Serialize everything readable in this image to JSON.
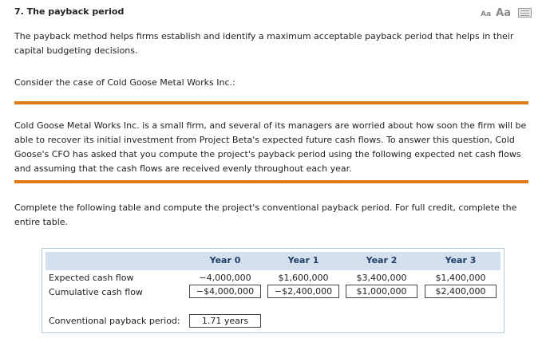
{
  "question": {
    "title": "7. The payback period"
  },
  "tools": {
    "font_small": "Aa",
    "font_large": "Aa",
    "print_icon": "print-icon"
  },
  "intro": "The payback method helps firms establish and identify a maximum acceptable payback period that helps in their capital budgeting decisions.",
  "consider": "Consider the case of Cold Goose Metal Works Inc.:",
  "case_text": "Cold Goose Metal Works Inc. is a small firm, and several of its managers are worried about how soon the firm will be able to recover its initial investment from Project Beta's expected future cash flows. To answer this question, Cold Goose's CFO has asked that you compute the project's payback period using the following expected net cash flows and assuming that the cash flows are received evenly throughout each year.",
  "instructions": "Complete the following table and compute the project's conventional payback period. For full credit, complete the entire table.",
  "colors": {
    "accent_rule": "#e07b1a",
    "header_band": "#d5e0ef",
    "header_text": "#1f3f66"
  },
  "table": {
    "columns": [
      "Year 0",
      "Year 1",
      "Year 2",
      "Year 3"
    ],
    "rows": [
      {
        "label": "Expected cash flow",
        "values": [
          "−4,000,000",
          "$1,600,000",
          "$3,400,000",
          "$1,400,000"
        ]
      },
      {
        "label": "Cumulative cash flow",
        "values": [
          "−$4,000,000",
          "−$2,400,000",
          "$1,000,000",
          "$2,400,000"
        ]
      }
    ],
    "payback_label": "Conventional payback period:",
    "payback_value": "1.71 years"
  }
}
